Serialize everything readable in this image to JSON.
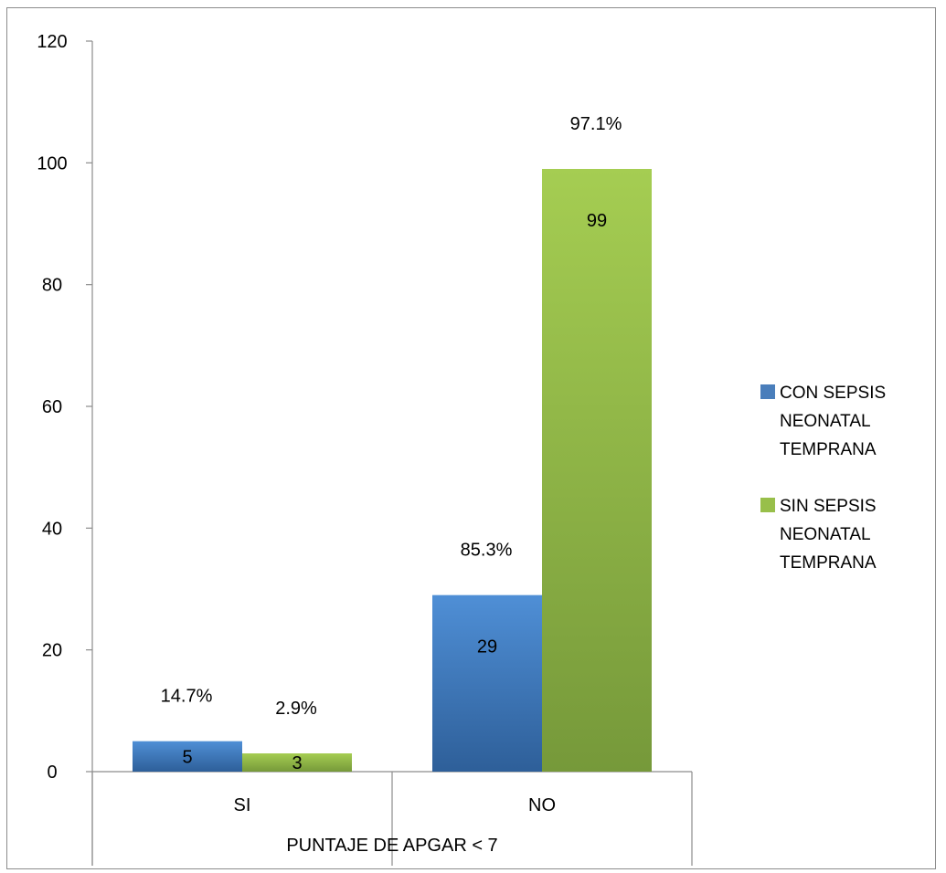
{
  "chart_data": {
    "type": "bar",
    "title": "",
    "xlabel": "PUNTAJE DE APGAR < 7",
    "ylabel": "",
    "categories": [
      "SI",
      "NO"
    ],
    "ylim": [
      0,
      120
    ],
    "yticks": [
      0,
      20,
      40,
      60,
      80,
      100,
      120
    ],
    "grid": false,
    "legend_position": "right",
    "series": [
      {
        "name": "CON SEPSIS NEONATAL TEMPRANA",
        "legend_lines": [
          "CON SEPSIS",
          "NEONATAL",
          "TEMPRANA"
        ],
        "values": [
          5,
          29
        ],
        "percent_labels": [
          "14.7%",
          "85.3%"
        ],
        "color": "#4a7ebb"
      },
      {
        "name": "SIN SEPSIS NEONATAL TEMPRANA",
        "legend_lines": [
          "SIN SEPSIS",
          "NEONATAL",
          "TEMPRANA"
        ],
        "values": [
          3,
          99
        ],
        "percent_labels": [
          "2.9%",
          "97.1%"
        ],
        "color": "#98bf4a"
      }
    ]
  }
}
